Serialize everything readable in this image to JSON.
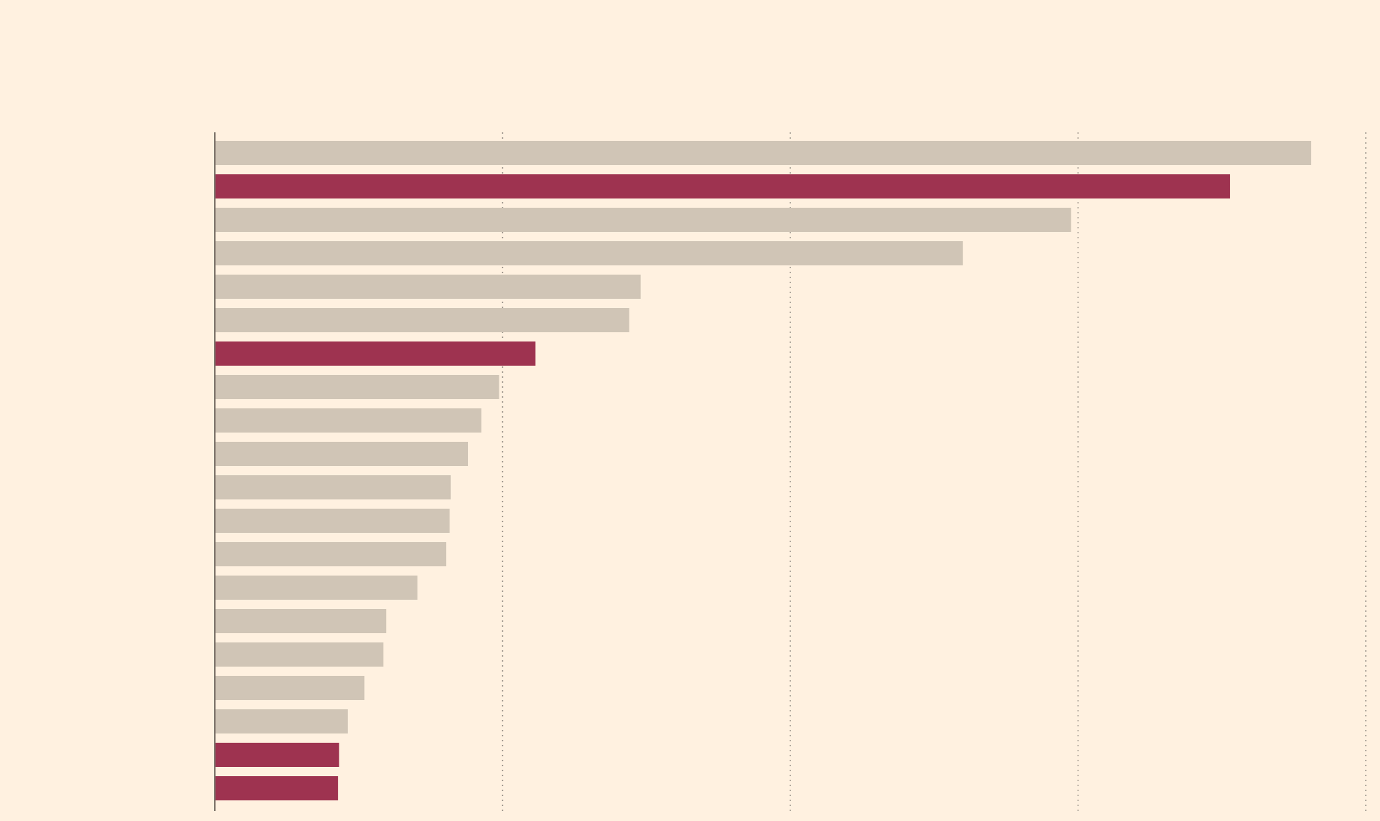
{
  "chart_data": {
    "type": "bar",
    "orientation": "horizontal",
    "title": "",
    "xlabel": "",
    "ylabel": "",
    "xlim": [
      0,
      200
    ],
    "grid": true,
    "legend": "none",
    "tick_values": [
      0,
      50,
      100,
      150,
      200
    ],
    "values": [
      190.5,
      176.4,
      148.8,
      130.0,
      74.0,
      72.0,
      55.7,
      49.4,
      46.3,
      44.0,
      41.0,
      40.8,
      40.2,
      35.2,
      29.8,
      29.3,
      26.0,
      23.1,
      21.6,
      21.4
    ],
    "highlighted": [
      false,
      true,
      false,
      false,
      false,
      false,
      true,
      false,
      false,
      false,
      false,
      false,
      false,
      false,
      false,
      false,
      false,
      false,
      true,
      true
    ],
    "colors": {
      "background": "#fff1e0",
      "bar": "#d0c5b6",
      "highlight": "#9e3350",
      "grid": "#9a9289",
      "axis": "#7a7067"
    }
  }
}
